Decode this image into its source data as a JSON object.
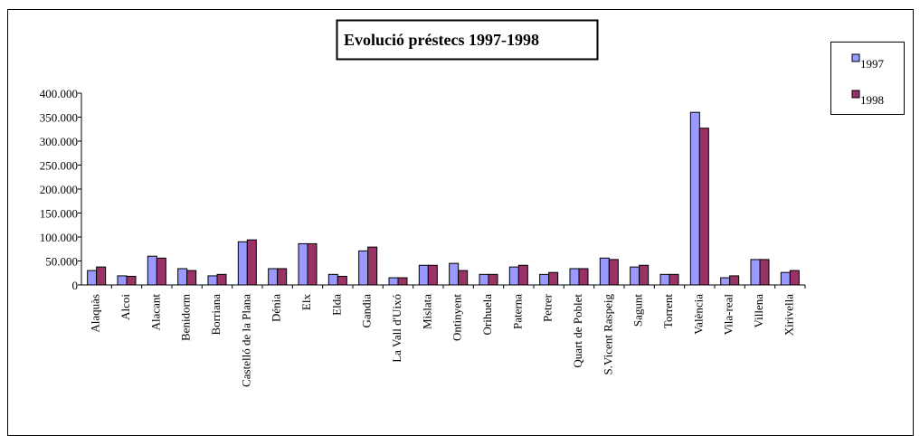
{
  "chart_data": {
    "type": "bar",
    "title": "Evolució préstecs 1997-1998",
    "categories": [
      "Alaquàs",
      "Alcoi",
      "Alacant",
      "Benidorm",
      "Borriana",
      "Castelló de la Plana",
      "Dénia",
      "Elx",
      "Elda",
      "Gandia",
      "La Vall d'Uixó",
      "Mislata",
      "Ontinyent",
      "Orihuela",
      "Paterna",
      "Petrer",
      "Quart de Poblet",
      "S.Vicent Raspeig",
      "Sagunt",
      "Torrent",
      "València",
      "Vila-real",
      "Villena",
      "Xirivella"
    ],
    "series": [
      {
        "name": "1997",
        "color": "#9999ff",
        "values": [
          30000,
          19000,
          60000,
          34000,
          19000,
          90000,
          34000,
          86000,
          22000,
          71000,
          15000,
          41000,
          45000,
          22000,
          37500,
          22000,
          34000,
          56000,
          37500,
          22000,
          360000,
          15000,
          53000,
          26000
        ]
      },
      {
        "name": "1998",
        "color": "#993366",
        "values": [
          37500,
          18000,
          56000,
          30000,
          22000,
          94000,
          34000,
          86000,
          18000,
          79000,
          15000,
          41000,
          30000,
          22000,
          41000,
          26000,
          34000,
          53000,
          41000,
          22000,
          327000,
          19000,
          53000,
          30000
        ]
      }
    ],
    "ylim": [
      0,
      400000
    ],
    "yticks": [
      0,
      {
        "value": 50000,
        "label": "50.000"
      },
      {
        "value": 100000,
        "label": "100.000"
      },
      {
        "value": 150000,
        "label": "150.000"
      },
      {
        "value": 200000,
        "label": "200.000"
      },
      {
        "value": 250000,
        "label": "250.000"
      },
      {
        "value": 300000,
        "label": "300.000"
      },
      {
        "value": 350000,
        "label": "350.000"
      },
      {
        "value": 400000,
        "label": "400.000"
      }
    ],
    "legend": "right"
  }
}
